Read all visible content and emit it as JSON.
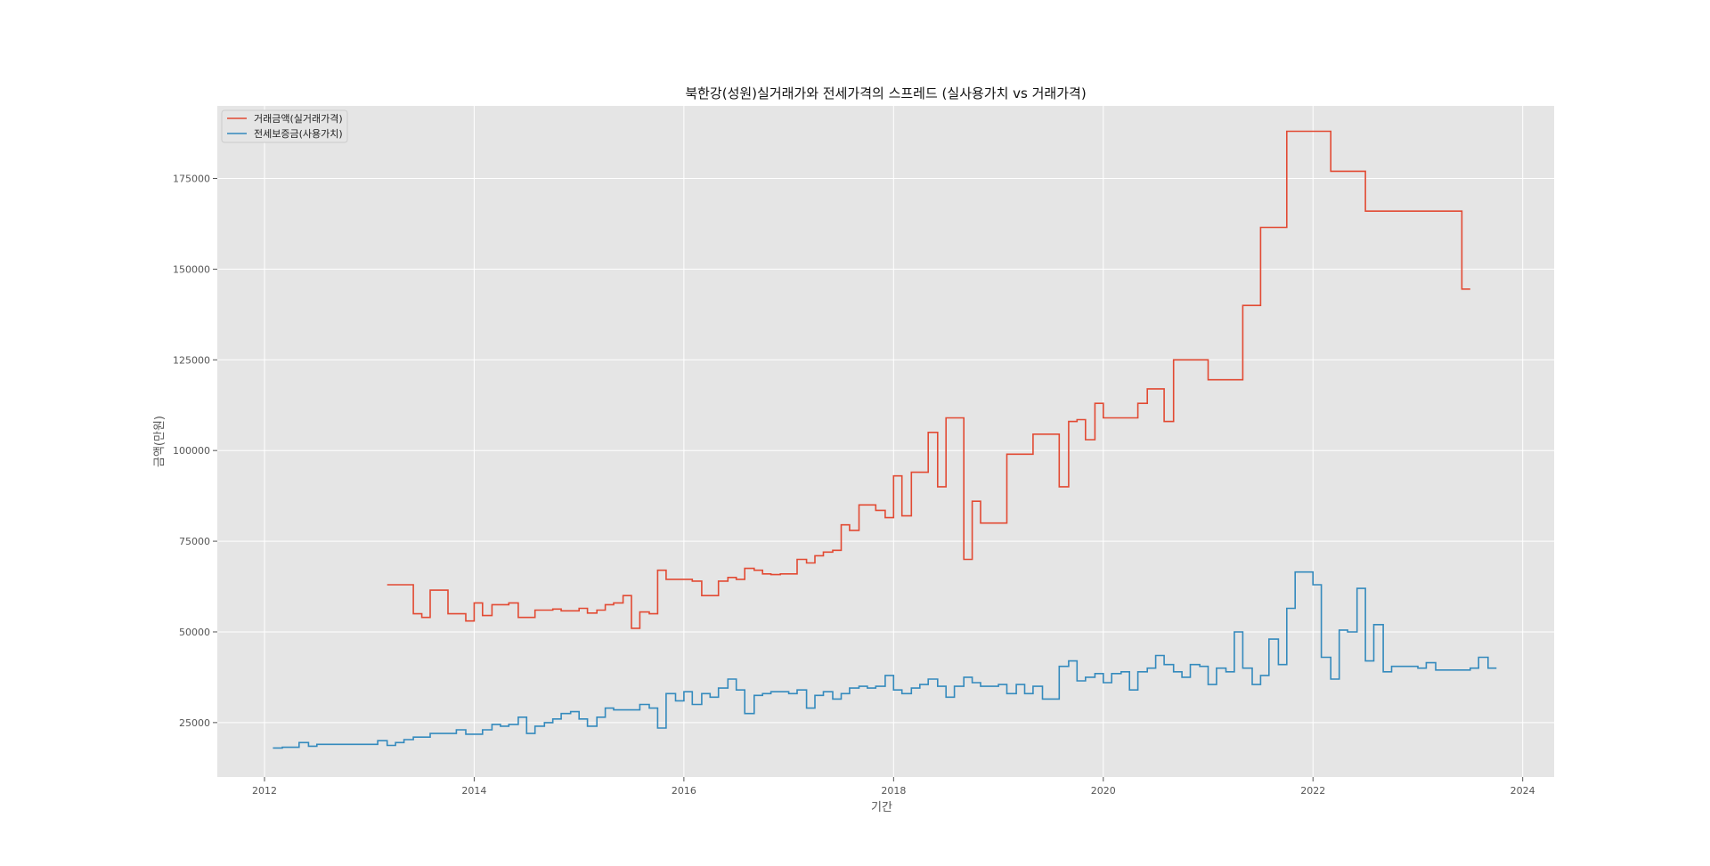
{
  "chart_data": {
    "type": "line",
    "step": true,
    "title": "북한강(성원)실거래가와 전세가격의 스프레드 (실사용가치 vs 거래가격)",
    "xlabel": "기간",
    "ylabel": "금액(만원)",
    "xlim": [
      2011.55,
      2024.3
    ],
    "ylim": [
      10000,
      195000
    ],
    "x_ticks": [
      2012,
      2014,
      2016,
      2018,
      2020,
      2022,
      2024
    ],
    "x_tick_labels": [
      "2012",
      "2014",
      "2016",
      "2018",
      "2020",
      "2022",
      "2024"
    ],
    "y_ticks": [
      25000,
      50000,
      75000,
      100000,
      125000,
      150000,
      175000
    ],
    "y_tick_labels": [
      "25000",
      "50000",
      "75000",
      "100000",
      "125000",
      "150000",
      "175000"
    ],
    "grid": true,
    "legend_position": "top-left",
    "colors": {
      "background": "#e5e5e5",
      "grid": "#ffffff"
    },
    "series": [
      {
        "name": "거래금액(실거래가격)",
        "color": "#e24a33",
        "points": [
          [
            2013.17,
            63000
          ],
          [
            2013.42,
            55000
          ],
          [
            2013.5,
            54000
          ],
          [
            2013.58,
            61500
          ],
          [
            2013.75,
            55000
          ],
          [
            2013.92,
            53000
          ],
          [
            2014.0,
            58000
          ],
          [
            2014.08,
            54500
          ],
          [
            2014.17,
            57500
          ],
          [
            2014.33,
            58000
          ],
          [
            2014.42,
            54000
          ],
          [
            2014.58,
            56000
          ],
          [
            2014.67,
            56000
          ],
          [
            2014.75,
            56300
          ],
          [
            2014.83,
            55800
          ],
          [
            2015.0,
            56500
          ],
          [
            2015.08,
            55200
          ],
          [
            2015.17,
            56000
          ],
          [
            2015.25,
            57500
          ],
          [
            2015.33,
            58000
          ],
          [
            2015.42,
            60000
          ],
          [
            2015.5,
            51000
          ],
          [
            2015.58,
            55500
          ],
          [
            2015.67,
            55000
          ],
          [
            2015.75,
            67000
          ],
          [
            2015.83,
            64500
          ],
          [
            2016.08,
            64000
          ],
          [
            2016.17,
            60000
          ],
          [
            2016.33,
            64000
          ],
          [
            2016.42,
            65000
          ],
          [
            2016.5,
            64500
          ],
          [
            2016.58,
            67500
          ],
          [
            2016.67,
            67000
          ],
          [
            2016.75,
            66000
          ],
          [
            2016.83,
            65800
          ],
          [
            2016.92,
            66000
          ],
          [
            2017.08,
            70000
          ],
          [
            2017.17,
            69000
          ],
          [
            2017.25,
            71000
          ],
          [
            2017.33,
            72000
          ],
          [
            2017.42,
            72500
          ],
          [
            2017.5,
            79500
          ],
          [
            2017.58,
            78000
          ],
          [
            2017.67,
            85000
          ],
          [
            2017.83,
            83500
          ],
          [
            2017.92,
            81500
          ],
          [
            2018.0,
            93000
          ],
          [
            2018.08,
            82000
          ],
          [
            2018.17,
            94000
          ],
          [
            2018.33,
            105000
          ],
          [
            2018.42,
            90000
          ],
          [
            2018.5,
            109000
          ],
          [
            2018.67,
            70000
          ],
          [
            2018.75,
            86000
          ],
          [
            2018.83,
            80000
          ],
          [
            2019.08,
            99000
          ],
          [
            2019.33,
            104500
          ],
          [
            2019.58,
            90000
          ],
          [
            2019.67,
            108000
          ],
          [
            2019.75,
            108500
          ],
          [
            2019.83,
            103000
          ],
          [
            2019.92,
            113000
          ],
          [
            2020.0,
            109000
          ],
          [
            2020.33,
            113000
          ],
          [
            2020.42,
            117000
          ],
          [
            2020.58,
            108000
          ],
          [
            2020.67,
            125000
          ],
          [
            2021.0,
            119500
          ],
          [
            2021.33,
            140000
          ],
          [
            2021.5,
            161500
          ],
          [
            2021.75,
            188000
          ],
          [
            2022.17,
            177000
          ],
          [
            2022.5,
            166000
          ],
          [
            2023.42,
            144500
          ],
          [
            2023.5,
            144500
          ]
        ]
      },
      {
        "name": "전세보증금(사용가치)",
        "color": "#348abd",
        "points": [
          [
            2012.08,
            18000
          ],
          [
            2012.17,
            18200
          ],
          [
            2012.33,
            19500
          ],
          [
            2012.42,
            18500
          ],
          [
            2012.5,
            19000
          ],
          [
            2013.08,
            20000
          ],
          [
            2013.17,
            18700
          ],
          [
            2013.25,
            19500
          ],
          [
            2013.33,
            20300
          ],
          [
            2013.42,
            21000
          ],
          [
            2013.58,
            22000
          ],
          [
            2013.83,
            23000
          ],
          [
            2013.92,
            21800
          ],
          [
            2014.08,
            23000
          ],
          [
            2014.17,
            24500
          ],
          [
            2014.25,
            24000
          ],
          [
            2014.33,
            24500
          ],
          [
            2014.42,
            26500
          ],
          [
            2014.5,
            22000
          ],
          [
            2014.58,
            24000
          ],
          [
            2014.67,
            25000
          ],
          [
            2014.75,
            26000
          ],
          [
            2014.83,
            27500
          ],
          [
            2014.92,
            28000
          ],
          [
            2015.0,
            26000
          ],
          [
            2015.08,
            24000
          ],
          [
            2015.17,
            26500
          ],
          [
            2015.25,
            29000
          ],
          [
            2015.33,
            28500
          ],
          [
            2015.58,
            30000
          ],
          [
            2015.67,
            29000
          ],
          [
            2015.75,
            23500
          ],
          [
            2015.83,
            33000
          ],
          [
            2015.92,
            31000
          ],
          [
            2016.0,
            33500
          ],
          [
            2016.08,
            30000
          ],
          [
            2016.17,
            33000
          ],
          [
            2016.25,
            32000
          ],
          [
            2016.33,
            34500
          ],
          [
            2016.42,
            37000
          ],
          [
            2016.5,
            34000
          ],
          [
            2016.58,
            27500
          ],
          [
            2016.67,
            32500
          ],
          [
            2016.75,
            33000
          ],
          [
            2016.83,
            33500
          ],
          [
            2017.0,
            33000
          ],
          [
            2017.08,
            34000
          ],
          [
            2017.17,
            29000
          ],
          [
            2017.25,
            32500
          ],
          [
            2017.33,
            33500
          ],
          [
            2017.42,
            31500
          ],
          [
            2017.5,
            33000
          ],
          [
            2017.58,
            34500
          ],
          [
            2017.67,
            35000
          ],
          [
            2017.75,
            34500
          ],
          [
            2017.83,
            35000
          ],
          [
            2017.92,
            38000
          ],
          [
            2018.0,
            34000
          ],
          [
            2018.08,
            33000
          ],
          [
            2018.17,
            34500
          ],
          [
            2018.25,
            35500
          ],
          [
            2018.33,
            37000
          ],
          [
            2018.42,
            35000
          ],
          [
            2018.5,
            32000
          ],
          [
            2018.58,
            35000
          ],
          [
            2018.67,
            37500
          ],
          [
            2018.75,
            36000
          ],
          [
            2018.83,
            35000
          ],
          [
            2019.0,
            35500
          ],
          [
            2019.08,
            33000
          ],
          [
            2019.17,
            35500
          ],
          [
            2019.25,
            33000
          ],
          [
            2019.33,
            35000
          ],
          [
            2019.42,
            31500
          ],
          [
            2019.58,
            40500
          ],
          [
            2019.67,
            42000
          ],
          [
            2019.75,
            36500
          ],
          [
            2019.83,
            37500
          ],
          [
            2019.92,
            38500
          ],
          [
            2020.0,
            36000
          ],
          [
            2020.08,
            38500
          ],
          [
            2020.17,
            39000
          ],
          [
            2020.25,
            34000
          ],
          [
            2020.33,
            39000
          ],
          [
            2020.42,
            40000
          ],
          [
            2020.5,
            43500
          ],
          [
            2020.58,
            41000
          ],
          [
            2020.67,
            39000
          ],
          [
            2020.75,
            37500
          ],
          [
            2020.83,
            41000
          ],
          [
            2020.92,
            40500
          ],
          [
            2021.0,
            35500
          ],
          [
            2021.08,
            40000
          ],
          [
            2021.17,
            39000
          ],
          [
            2021.25,
            50000
          ],
          [
            2021.33,
            40000
          ],
          [
            2021.42,
            35500
          ],
          [
            2021.5,
            38000
          ],
          [
            2021.58,
            48000
          ],
          [
            2021.67,
            41000
          ],
          [
            2021.75,
            56500
          ],
          [
            2021.83,
            66500
          ],
          [
            2022.0,
            63000
          ],
          [
            2022.08,
            43000
          ],
          [
            2022.17,
            37000
          ],
          [
            2022.25,
            50500
          ],
          [
            2022.33,
            50000
          ],
          [
            2022.42,
            62000
          ],
          [
            2022.5,
            42000
          ],
          [
            2022.58,
            52000
          ],
          [
            2022.67,
            39000
          ],
          [
            2022.75,
            40500
          ],
          [
            2023.0,
            40000
          ],
          [
            2023.08,
            41500
          ],
          [
            2023.17,
            39500
          ],
          [
            2023.33,
            39500
          ],
          [
            2023.5,
            40000
          ],
          [
            2023.58,
            43000
          ],
          [
            2023.67,
            40000
          ],
          [
            2023.75,
            40000
          ]
        ]
      }
    ]
  }
}
